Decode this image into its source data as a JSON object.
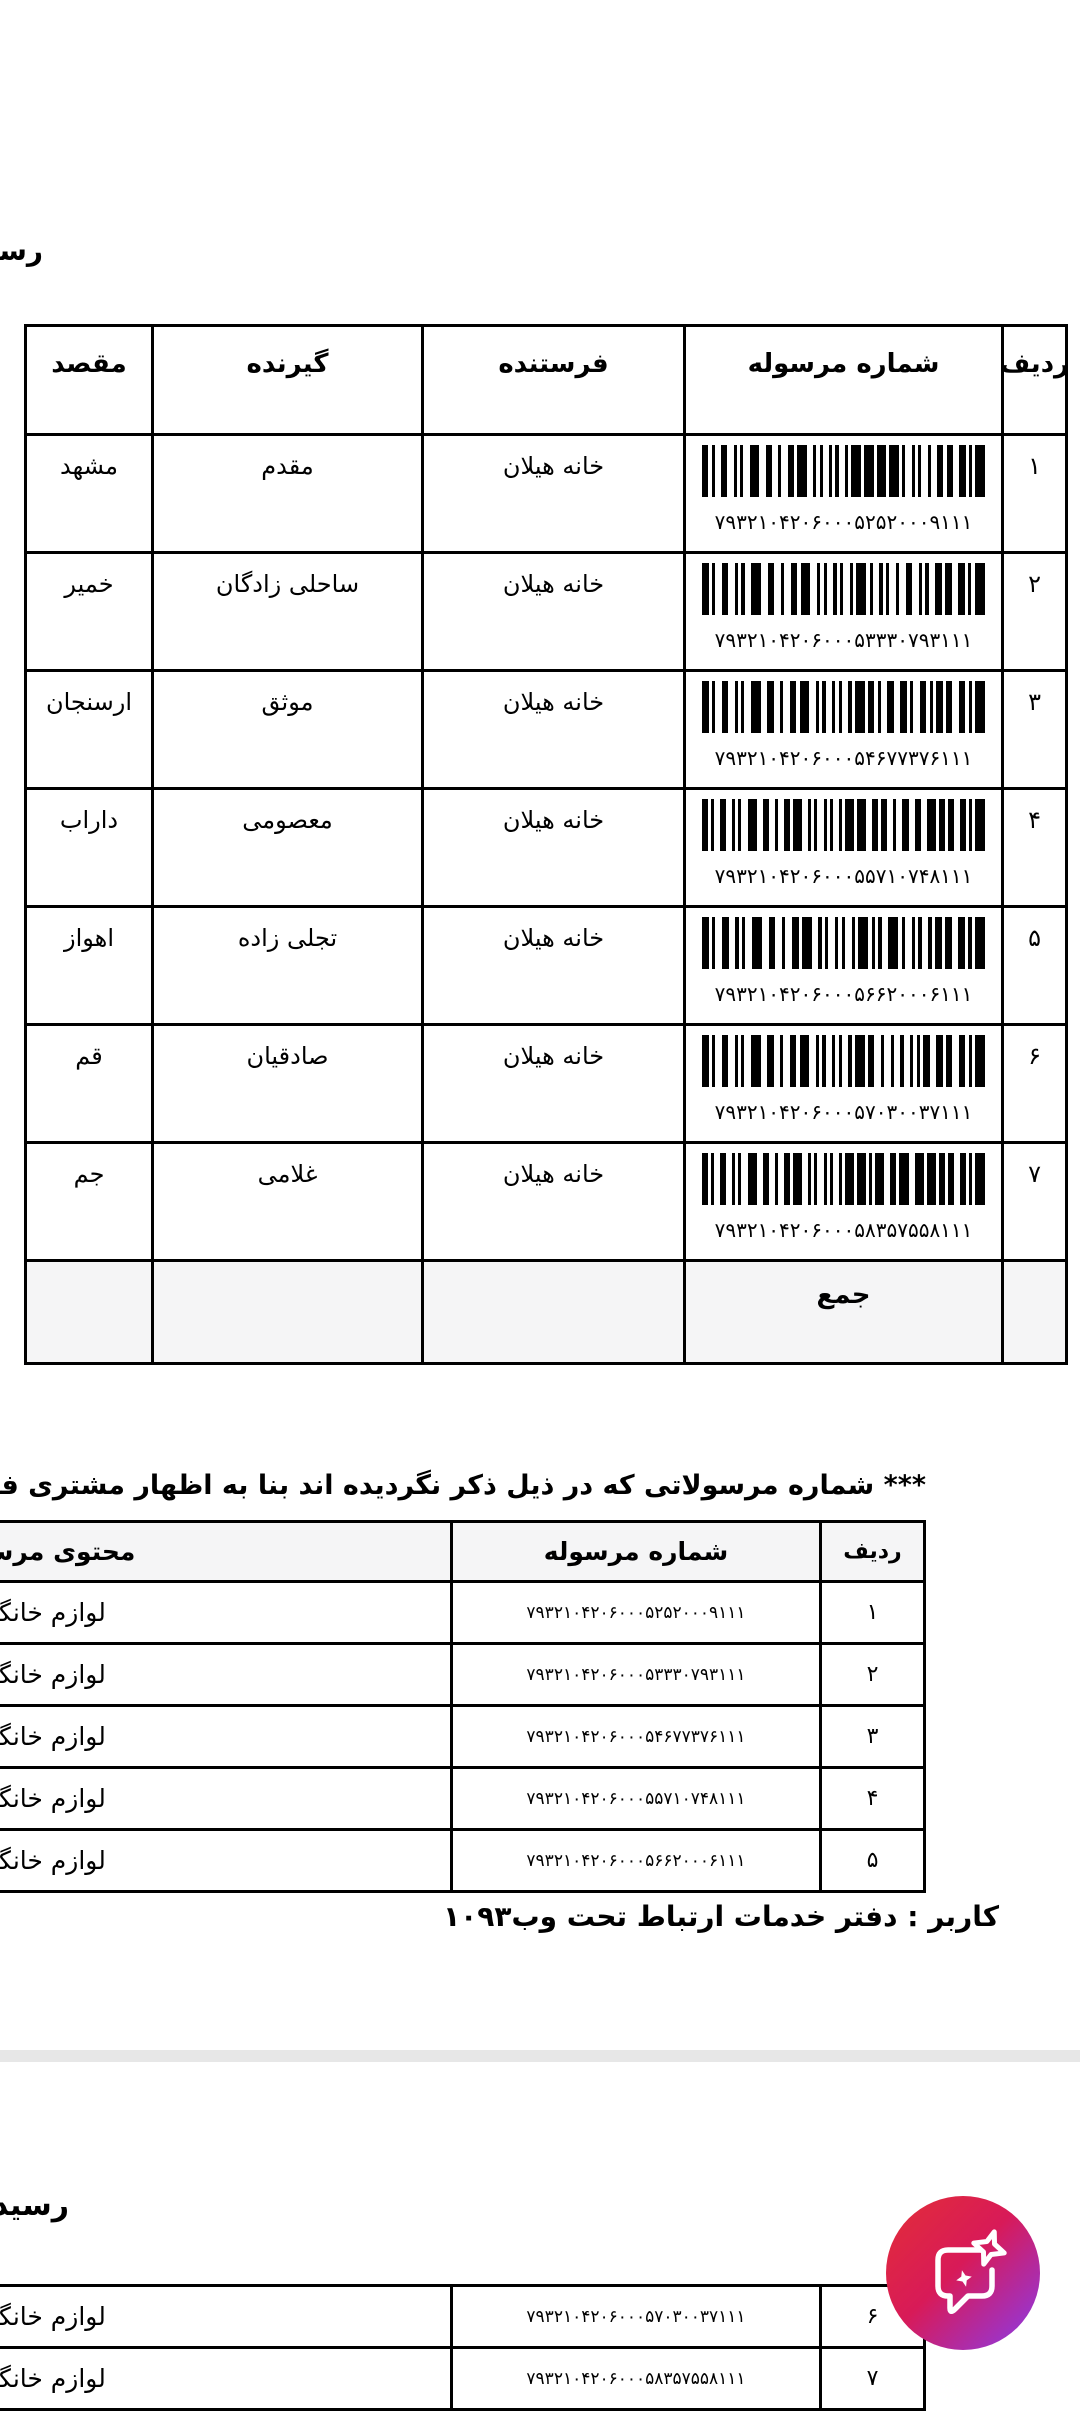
{
  "page": {
    "top_title_fragment": "رسید",
    "bottom_title_fragment": "رسید",
    "note": "*** شماره مرسولاتی که در ذیل ذکر نگردیده اند بنا به اظهار مشتری فاقد وجه نقد، اشیاء قیمتی",
    "user_line": "کاربر : دفتر خدمات ارتباط تحت وب۱۰۹۳"
  },
  "receipt_table": {
    "headers": {
      "row_no": "ردیف",
      "tracking": "شماره مرسوله",
      "sender": "فرستنده",
      "receiver": "گیرنده",
      "destination": "مقصد"
    },
    "rows": [
      {
        "row_no": "۱",
        "tracking": "۷۹۳۲۱۰۴۲۰۶۰۰۰۵۲۵۲۰۰۰۹۱۱۱",
        "sender": "خانه هیلان",
        "receiver": "مقدم",
        "destination": "مشهد"
      },
      {
        "row_no": "۲",
        "tracking": "۷۹۳۲۱۰۴۲۰۶۰۰۰۵۳۳۳۰۷۹۳۱۱۱",
        "sender": "خانه هیلان",
        "receiver": "ساحلی زادگان",
        "destination": "خمیر"
      },
      {
        "row_no": "۳",
        "tracking": "۷۹۳۲۱۰۴۲۰۶۰۰۰۵۴۶۷۷۳۷۶۱۱۱",
        "sender": "خانه هیلان",
        "receiver": "موثق",
        "destination": "ارسنجان"
      },
      {
        "row_no": "۴",
        "tracking": "۷۹۳۲۱۰۴۲۰۶۰۰۰۵۵۷۱۰۷۴۸۱۱۱",
        "sender": "خانه هیلان",
        "receiver": "معصومی",
        "destination": "داراب"
      },
      {
        "row_no": "۵",
        "tracking": "۷۹۳۲۱۰۴۲۰۶۰۰۰۵۶۶۲۰۰۰۶۱۱۱",
        "sender": "خانه هیلان",
        "receiver": "تجلی زاده",
        "destination": "اهواز"
      },
      {
        "row_no": "۶",
        "tracking": "۷۹۳۲۱۰۴۲۰۶۰۰۰۵۷۰۳۰۰۳۷۱۱۱",
        "sender": "خانه هیلان",
        "receiver": "صادقیان",
        "destination": "قم"
      },
      {
        "row_no": "۷",
        "tracking": "۷۹۳۲۱۰۴۲۰۶۰۰۰۵۸۳۵۷۵۵۸۱۱۱",
        "sender": "خانه هیلان",
        "receiver": "غلامی",
        "destination": "جم"
      }
    ],
    "total_label": "جمع"
  },
  "contents_table": {
    "headers": {
      "row_no": "ردیف",
      "tracking": "شماره مرسوله",
      "content": "محتوی مرسوله"
    },
    "rows": [
      {
        "row_no": "۱",
        "tracking": "۷۹۳۲۱۰۴۲۰۶۰۰۰۵۲۵۲۰۰۰۹۱۱۱",
        "content": "لوازم خانگی"
      },
      {
        "row_no": "۲",
        "tracking": "۷۹۳۲۱۰۴۲۰۶۰۰۰۵۳۳۳۰۷۹۳۱۱۱",
        "content": "لوازم خانگی"
      },
      {
        "row_no": "۳",
        "tracking": "۷۹۳۲۱۰۴۲۰۶۰۰۰۵۴۶۷۷۳۷۶۱۱۱",
        "content": "لوازم خانگی"
      },
      {
        "row_no": "۴",
        "tracking": "۷۹۳۲۱۰۴۲۰۶۰۰۰۵۵۷۱۰۷۴۸۱۱۱",
        "content": "لوازم خانگی"
      },
      {
        "row_no": "۵",
        "tracking": "۷۹۳۲۱۰۴۲۰۶۰۰۰۵۶۶۲۰۰۰۶۱۱۱",
        "content": "لوازم خانگی"
      },
      {
        "row_no": "۶",
        "tracking": "۷۹۳۲۱۰۴۲۰۶۰۰۰۵۷۰۳۰۰۳۷۱۱۱",
        "content": "لوازم خانگی"
      },
      {
        "row_no": "۷",
        "tracking": "۷۹۳۲۱۰۴۲۰۶۰۰۰۵۸۳۵۷۵۵۸۱۱۱",
        "content": "لوازم خانگی"
      }
    ]
  },
  "fab": {
    "icon": "chat-sparkle-icon",
    "gradient_start": "#e12b3c",
    "gradient_mid": "#d81a58",
    "gradient_end": "#9138dd"
  }
}
